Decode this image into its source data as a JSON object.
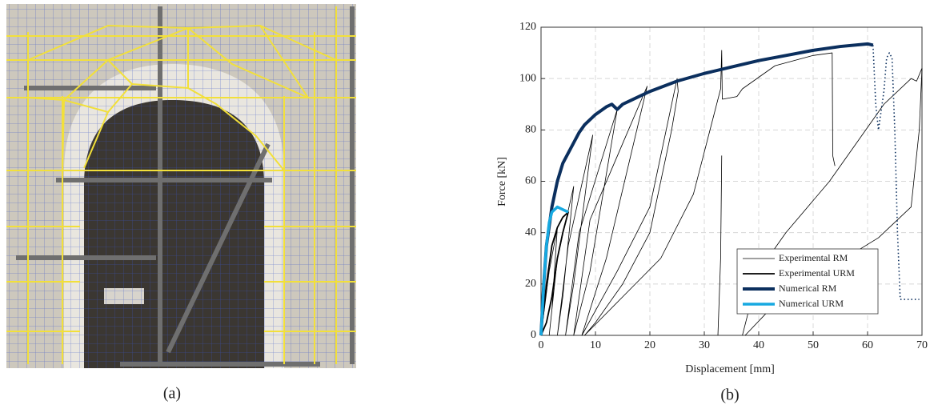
{
  "captions": {
    "a": "(a)",
    "b": "(b)"
  },
  "chart_data": {
    "type": "line",
    "xlabel": "Displacement [mm]",
    "ylabel": "Force [kN]",
    "xlim": [
      0,
      70
    ],
    "ylim": [
      0,
      120
    ],
    "xticks": [
      0,
      10,
      20,
      30,
      40,
      50,
      60,
      70
    ],
    "yticks": [
      0,
      20,
      40,
      60,
      80,
      100,
      120
    ],
    "grid": true,
    "legend": "lower right",
    "series": [
      {
        "name": "Experimental RM",
        "color": "#000000",
        "x": [
          0,
          1.5,
          3,
          2,
          1.5,
          3,
          6,
          4,
          3,
          5,
          9.5,
          6,
          4.5,
          7,
          14,
          9,
          6,
          9,
          19.5,
          12,
          7.5,
          14,
          20,
          25,
          25.2,
          24,
          20,
          15,
          10,
          8,
          15,
          22,
          28,
          33,
          33.2,
          33.3,
          33.4,
          36,
          37,
          43,
          50,
          53.5,
          53.6,
          54,
          null,
          32.5,
          33,
          33.2,
          null,
          37,
          40,
          45,
          53,
          58,
          63,
          68,
          69,
          70,
          69.5,
          68,
          62,
          52,
          42,
          37.5
        ],
        "values": [
          0,
          25,
          42,
          10,
          0,
          30,
          58,
          15,
          0,
          35,
          78,
          20,
          0,
          40,
          88,
          25,
          0,
          45,
          97,
          30,
          0,
          25,
          50,
          100,
          95,
          80,
          40,
          20,
          5,
          0,
          15,
          30,
          55,
          96,
          111,
          92,
          92,
          93,
          96,
          105,
          109,
          110,
          70,
          66,
          null,
          0,
          30,
          70,
          null,
          0,
          25,
          40,
          60,
          75,
          90,
          100,
          99,
          104,
          80,
          50,
          38,
          25,
          10,
          0
        ]
      },
      {
        "name": "Experimental URM",
        "color": "#000000",
        "x": [
          0,
          1,
          2,
          3,
          4,
          5,
          4,
          3,
          2,
          1,
          0
        ],
        "values": [
          0,
          20,
          35,
          42,
          46,
          48,
          40,
          30,
          15,
          5,
          0
        ]
      },
      {
        "name": "Numerical RM",
        "color": "#0b2f5e",
        "x": [
          0,
          0.5,
          1,
          2,
          3,
          4,
          5,
          6,
          7,
          8,
          10,
          12,
          13,
          14,
          15,
          17,
          20,
          25,
          30,
          35,
          40,
          45,
          50,
          55,
          60,
          61
        ],
        "values": [
          0,
          20,
          35,
          50,
          60,
          67,
          71,
          75,
          79,
          82,
          86,
          89,
          90,
          88,
          90,
          92,
          95,
          99,
          102,
          104.5,
          107,
          109,
          111,
          112.5,
          113.5,
          113
        ]
      },
      {
        "name": "Numerical URM",
        "color": "#17a9e1",
        "x": [
          0,
          0.5,
          1,
          1.5,
          2,
          3,
          4,
          5
        ],
        "values": [
          0,
          20,
          35,
          44,
          48,
          50,
          49,
          48
        ]
      },
      {
        "color": "#0b2f5e",
        "linestyle": "dotted",
        "x": [
          61,
          61.5,
          62,
          63,
          63.5,
          64,
          64.5,
          65,
          65.5,
          66,
          68,
          69.5
        ],
        "values": [
          113,
          90,
          80,
          95,
          108,
          110,
          108,
          80,
          40,
          14,
          14,
          14
        ]
      }
    ]
  }
}
